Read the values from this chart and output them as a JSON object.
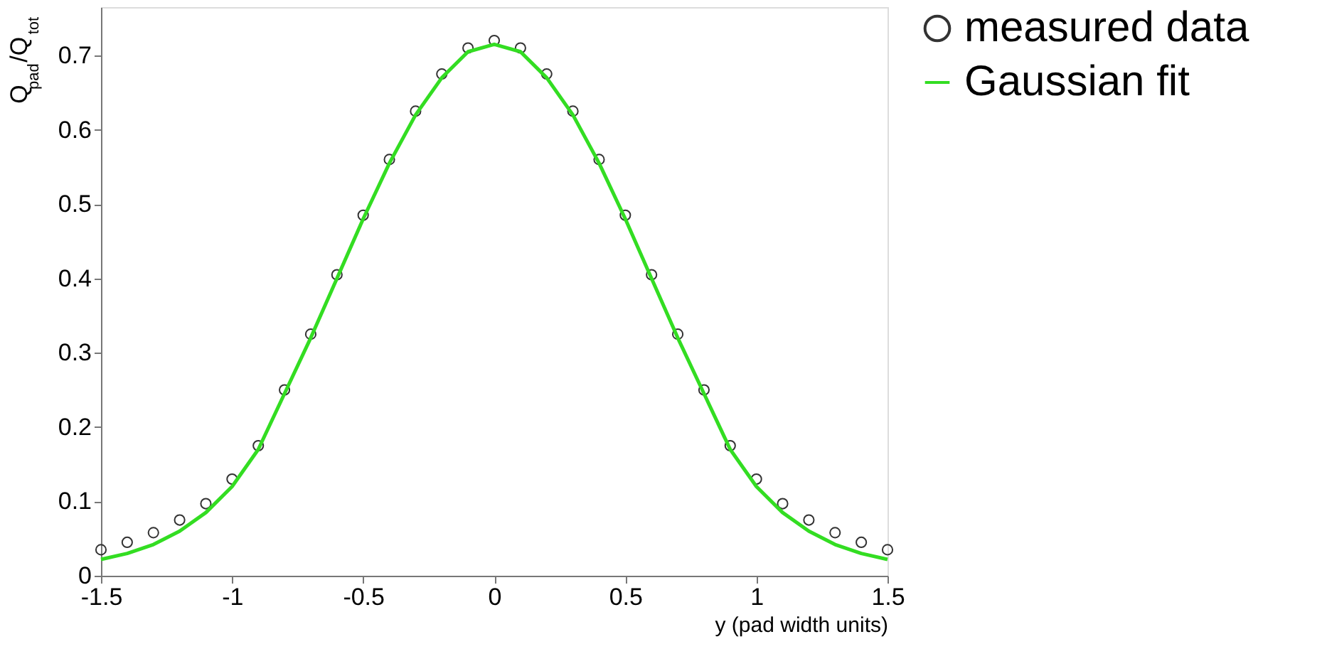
{
  "chart_data": {
    "type": "scatter",
    "xlabel": "y (pad width units)",
    "ylabel": "Q$_{pad}$/Q$_{tot}$",
    "x": [
      -1.5,
      -1.4,
      -1.3,
      -1.2,
      -1.1,
      -1.0,
      -0.9,
      -0.8,
      -0.7,
      -0.6,
      -0.5,
      -0.4,
      -0.3,
      -0.2,
      -0.1,
      0,
      0.1,
      0.2,
      0.3,
      0.4,
      0.5,
      0.6,
      0.7,
      0.8,
      0.9,
      1.0,
      1.1,
      1.2,
      1.3,
      1.4,
      1.5
    ],
    "series": [
      {
        "name": "measured data",
        "marker": "circle",
        "color": "#333333",
        "values": [
          0.035,
          0.045,
          0.058,
          0.075,
          0.097,
          0.13,
          0.175,
          0.25,
          0.325,
          0.405,
          0.485,
          0.56,
          0.625,
          0.675,
          0.71,
          0.72,
          0.71,
          0.675,
          0.625,
          0.56,
          0.485,
          0.405,
          0.325,
          0.25,
          0.175,
          0.13,
          0.097,
          0.075,
          0.058,
          0.045,
          0.035
        ]
      },
      {
        "name": "Gaussian fit",
        "type": "line",
        "marker": "none",
        "line_style": "solid",
        "color": "#33dd22",
        "values": [
          0.022,
          0.03,
          0.042,
          0.06,
          0.085,
          0.12,
          0.17,
          0.245,
          0.32,
          0.4,
          0.48,
          0.555,
          0.62,
          0.67,
          0.705,
          0.715,
          0.705,
          0.67,
          0.62,
          0.555,
          0.48,
          0.4,
          0.32,
          0.245,
          0.17,
          0.12,
          0.085,
          0.06,
          0.042,
          0.03,
          0.022
        ]
      }
    ],
    "xlim": [
      -1.5,
      1.5
    ],
    "xticks": [
      -1.5,
      -1,
      -0.5,
      0,
      0.5,
      1,
      1.5
    ],
    "ylim": [
      0,
      0.765
    ],
    "yticks": [
      0,
      0.1,
      0.2,
      0.3,
      0.4,
      0.5,
      0.6,
      0.7
    ],
    "grid": false,
    "legend": "top right"
  }
}
